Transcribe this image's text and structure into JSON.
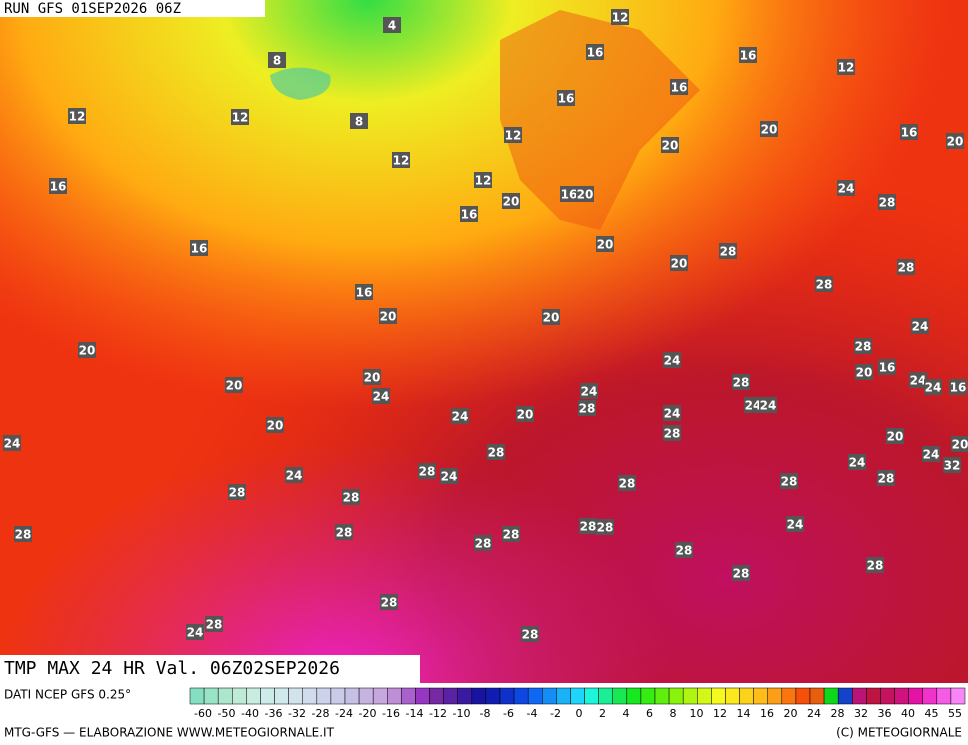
{
  "header": {
    "run": "RUN GFS 01SEP2026 06Z"
  },
  "map": {
    "labels": [
      12,
      4,
      16,
      16,
      12,
      8,
      16,
      16,
      12,
      12,
      8,
      20,
      16,
      12,
      20,
      20,
      12,
      12,
      16,
      24,
      16,
      20,
      20,
      28,
      16,
      20,
      16,
      28,
      20,
      28,
      28,
      16,
      20,
      20,
      24,
      20,
      28,
      24,
      20,
      16,
      20,
      24,
      24,
      16,
      28,
      20,
      24,
      24,
      28,
      24,
      24,
      24,
      20,
      24,
      24,
      20,
      28,
      20,
      32,
      20,
      28,
      24,
      24,
      24,
      28,
      24,
      28,
      28,
      28,
      28,
      28,
      28,
      28,
      28,
      24,
      28,
      28,
      28,
      28,
      28,
      28,
      28,
      24,
      28,
      28
    ]
  },
  "footer": {
    "title": "TMP MAX 24 HR Val. 06Z02SEP2026",
    "source": "DATI NCEP GFS 0.25°",
    "credit": "MTG-GFS — ELABORAZIONE WWW.METEOGIORNALE.IT",
    "copyright": "(C) METEOGIORNALE"
  },
  "colorbar": {
    "ticks": [
      -60,
      -50,
      -40,
      -36,
      -32,
      -28,
      -24,
      -20,
      -16,
      -14,
      -12,
      -10,
      -8,
      -6,
      -4,
      -2,
      0,
      2,
      4,
      6,
      8,
      10,
      12,
      14,
      16,
      20,
      24,
      28,
      32,
      36,
      40,
      45,
      55
    ]
  }
}
